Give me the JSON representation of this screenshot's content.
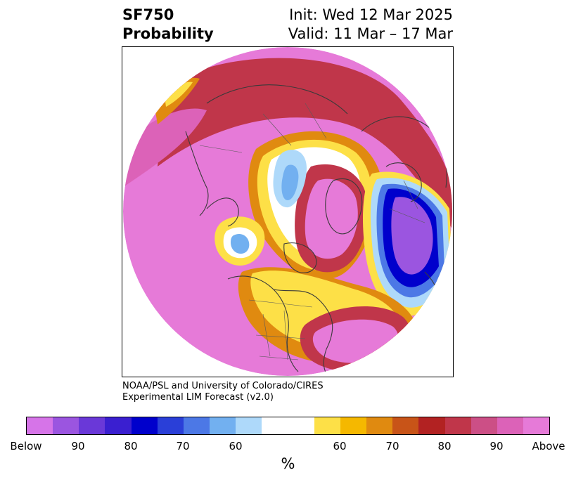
{
  "header": {
    "title_line1": "SF750",
    "title_line2": "Probability",
    "init_text": "Init: Wed 12 Mar 2025",
    "valid_text": "Valid: 11 Mar – 17 Mar"
  },
  "credit": {
    "line1": "NOAA/PSL and University of Colorado/CIRES",
    "line2": "Experimental LIM Forecast (v2.0)"
  },
  "colorbar": {
    "colors": [
      "#d674e8",
      "#9b55e0",
      "#6a38d8",
      "#3a1fd0",
      "#0000cc",
      "#2a3fd8",
      "#4c78e6",
      "#72b0f0",
      "#aed9fa",
      "#ffffff",
      "#ffffff",
      "#fde047",
      "#f5b800",
      "#e08a10",
      "#c85418",
      "#b22222",
      "#c0364a",
      "#cc4f86",
      "#dc62b8",
      "#e67ad8"
    ],
    "tick_labels": [
      "Below",
      "90",
      "80",
      "70",
      "60",
      "60",
      "70",
      "80",
      "90",
      "Above"
    ],
    "unit_label": "%"
  },
  "map": {
    "projection": "north-polar-stereographic",
    "colors": {
      "above": "#e67ad8",
      "above90": "#dc62b8",
      "above80": "#c0364a",
      "above70": "#e08a10",
      "above60": "#fde047",
      "below60": "#aed9fa",
      "below70": "#72b0f0",
      "below80": "#4c78e6",
      "below90": "#0000cc",
      "below": "#9b55e0",
      "coastline": "#3a3a3a"
    }
  }
}
